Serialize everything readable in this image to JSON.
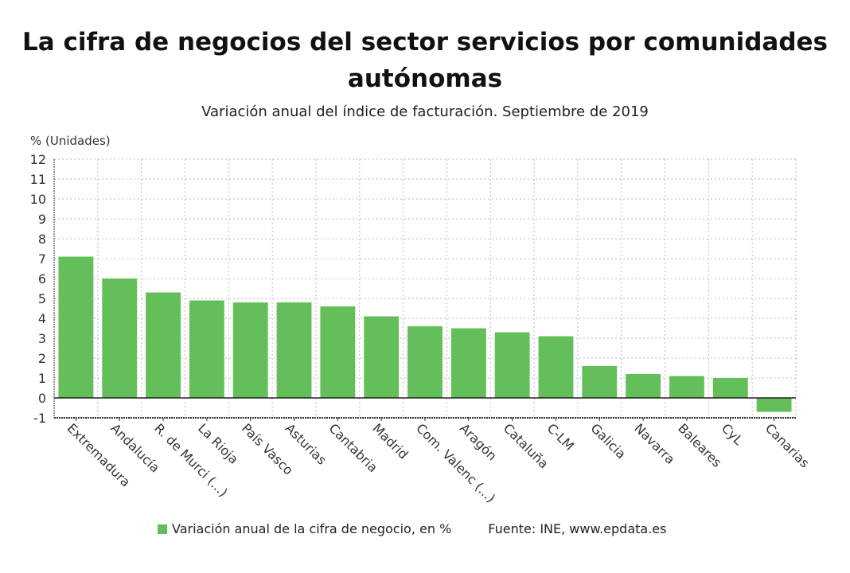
{
  "chart_data": {
    "type": "bar",
    "title": "La cifra de negocios del sector servicios por comunidades autónomas",
    "subtitle": "Variación anual del índice de facturación. Septiembre de 2019",
    "ylabel": "% (Unidades)",
    "xlabel": "",
    "ylim": [
      -1,
      12
    ],
    "yticks": [
      -1,
      0,
      1,
      2,
      3,
      4,
      5,
      6,
      7,
      8,
      9,
      10,
      11,
      12
    ],
    "grid": true,
    "legend_position": "bottom",
    "categories": [
      "Extremadura",
      "Andalucía",
      "R. de Murci (...)",
      "La Rioja",
      "País Vasco",
      "Asturias",
      "Cantabria",
      "Madrid",
      "Com. Valenc (...)",
      "Aragón",
      "Cataluña",
      "C-LM",
      "Galicia",
      "Navarra",
      "Baleares",
      "CyL",
      "Canarias"
    ],
    "series": [
      {
        "name": "Variación anual de la cifra de negocio, en %",
        "color": "#64bf5a",
        "values": [
          7.1,
          6.0,
          5.3,
          4.9,
          4.8,
          4.8,
          4.6,
          4.1,
          3.6,
          3.5,
          3.3,
          3.1,
          1.6,
          1.2,
          1.1,
          1.0,
          -0.7
        ]
      }
    ],
    "source": "Fuente: INE, www.epdata.es"
  }
}
